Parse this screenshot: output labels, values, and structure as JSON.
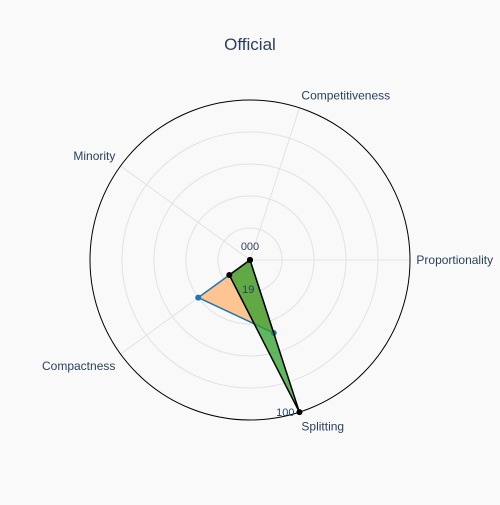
{
  "chart_data": {
    "type": "radar",
    "title": "Official",
    "axes": [
      "Proportionality",
      "Competitiveness",
      "Minority",
      "Compactness",
      "Splitting"
    ],
    "tick_labels": [
      "000",
      "19",
      "100"
    ],
    "range": [
      0,
      100
    ],
    "grid": true,
    "series": [
      {
        "values": [
          0,
          0,
          0,
          40,
          48
        ],
        "line_color": "#1f77b4",
        "fill_color": "#ffb26e",
        "fill_opacity": 0.75,
        "marker_color": "#1f77b4"
      },
      {
        "values": [
          0,
          0,
          0,
          16,
          100
        ],
        "line_color": "#000000",
        "fill_color": "#2ca02c",
        "fill_opacity": 0.75,
        "marker_color": "#000000"
      }
    ]
  }
}
